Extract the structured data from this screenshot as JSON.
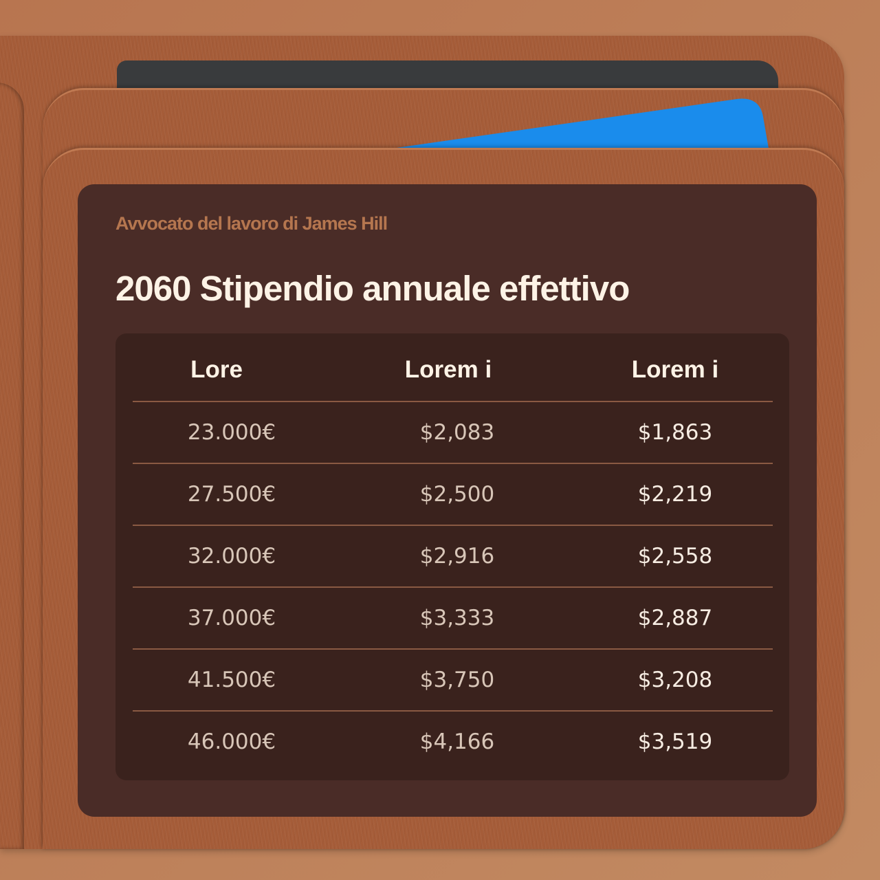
{
  "subtitle": "Avvocato del lavoro di James Hill",
  "title": "2060 Stipendio annuale effettivo",
  "colors": {
    "leather": "#a55c38",
    "panel": "#4a2c27",
    "table": "#3a221d",
    "card_blue": "#1a8cec",
    "card_dark": "#393b3d",
    "subtitle": "#b5764f"
  },
  "table": {
    "headers": [
      "Lore",
      "Lorem i",
      "Lorem i"
    ],
    "rows": [
      [
        "23.000€",
        "$2,083",
        "$1,863"
      ],
      [
        "27.500€",
        "$2,500",
        "$2,219"
      ],
      [
        "32.000€",
        "$2,916",
        "$2,558"
      ],
      [
        "37.000€",
        "$3,333",
        "$2,887"
      ],
      [
        "41.500€",
        "$3,750",
        "$3,208"
      ],
      [
        "46.000€",
        "$4,166",
        "$3,519"
      ]
    ]
  }
}
